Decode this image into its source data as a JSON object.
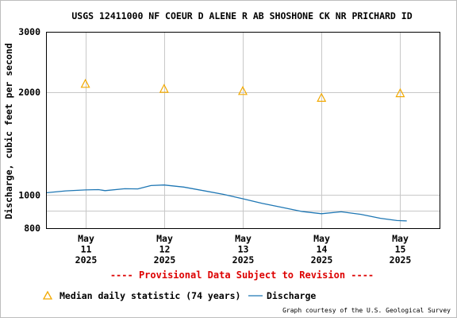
{
  "chart_data": {
    "type": "line",
    "title": "USGS 12411000 NF COEUR D ALENE R AB SHOSHONE CK NR PRICHARD ID",
    "ylabel": "Discharge, cubic feet per second",
    "y_scale": "log",
    "ylim": [
      800,
      3000
    ],
    "y_ticks": [
      800,
      1000,
      2000,
      3000
    ],
    "y_gridlines": [
      800,
      900,
      1000,
      2000,
      3000
    ],
    "x_ticks": [
      {
        "month": "May",
        "day": "11",
        "year": "2025"
      },
      {
        "month": "May",
        "day": "12",
        "year": "2025"
      },
      {
        "month": "May",
        "day": "13",
        "year": "2025"
      },
      {
        "month": "May",
        "day": "14",
        "year": "2025"
      },
      {
        "month": "May",
        "day": "15",
        "year": "2025"
      }
    ],
    "xlim": [
      "2025-05-10 12:00",
      "2025-05-15 12:00"
    ],
    "grid": true,
    "provisional_note": "---- Provisional Data Subject to Revision ----",
    "credit": "Graph courtesy of the U.S. Geological Survey",
    "colors": {
      "median": "#f2a900",
      "discharge": "#1f77b4",
      "provisional": "#dd0000",
      "grid": "#c8c8c8"
    },
    "series": [
      {
        "name": "Median daily statistic (74 years)",
        "marker": "triangle",
        "points": [
          {
            "x": "2025-05-11 00:00",
            "y": 2110
          },
          {
            "x": "2025-05-12 00:00",
            "y": 2040
          },
          {
            "x": "2025-05-13 00:00",
            "y": 2010
          },
          {
            "x": "2025-05-14 00:00",
            "y": 1920
          },
          {
            "x": "2025-05-15 00:00",
            "y": 1980
          }
        ]
      },
      {
        "name": "Discharge",
        "points": [
          {
            "x": "2025-05-10 12:00",
            "y": 1015
          },
          {
            "x": "2025-05-10 18:00",
            "y": 1028
          },
          {
            "x": "2025-05-11 00:00",
            "y": 1035
          },
          {
            "x": "2025-05-11 04:00",
            "y": 1037
          },
          {
            "x": "2025-05-11 06:00",
            "y": 1030
          },
          {
            "x": "2025-05-11 12:00",
            "y": 1043
          },
          {
            "x": "2025-05-11 16:00",
            "y": 1042
          },
          {
            "x": "2025-05-11 20:00",
            "y": 1066
          },
          {
            "x": "2025-05-12 00:00",
            "y": 1070
          },
          {
            "x": "2025-05-12 06:00",
            "y": 1055
          },
          {
            "x": "2025-05-12 12:00",
            "y": 1030
          },
          {
            "x": "2025-05-12 18:00",
            "y": 1005
          },
          {
            "x": "2025-05-13 00:00",
            "y": 975
          },
          {
            "x": "2025-05-13 06:00",
            "y": 945
          },
          {
            "x": "2025-05-13 12:00",
            "y": 920
          },
          {
            "x": "2025-05-13 18:00",
            "y": 895
          },
          {
            "x": "2025-05-14 00:00",
            "y": 882
          },
          {
            "x": "2025-05-14 06:00",
            "y": 893
          },
          {
            "x": "2025-05-14 12:00",
            "y": 878
          },
          {
            "x": "2025-05-14 18:00",
            "y": 855
          },
          {
            "x": "2025-05-14 23:00",
            "y": 842
          },
          {
            "x": "2025-05-15 02:00",
            "y": 840
          }
        ]
      }
    ]
  }
}
